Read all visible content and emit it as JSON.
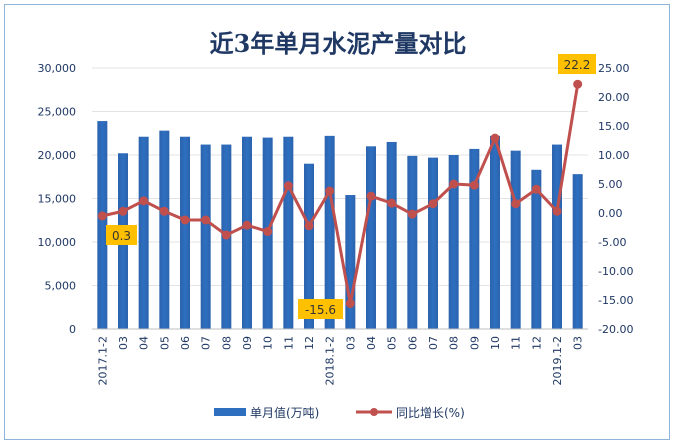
{
  "chart_data": {
    "type": "bar+line",
    "title": "近3年单月水泥产量对比",
    "categories": [
      "2017.1-2",
      "03",
      "04",
      "05",
      "06",
      "07",
      "08",
      "09",
      "10",
      "11",
      "12",
      "2018.1-2",
      "03",
      "04",
      "05",
      "06",
      "07",
      "08",
      "09",
      "10",
      "11",
      "12",
      "2019.1-2",
      "03"
    ],
    "series": [
      {
        "name": "单月值(万吨)",
        "type": "bar",
        "axis": "left",
        "color": "#2e6fc0",
        "values": [
          23900,
          20200,
          22100,
          22800,
          22100,
          21200,
          21200,
          22100,
          22000,
          22100,
          19000,
          22200,
          15400,
          21000,
          21500,
          19900,
          19700,
          20000,
          20700,
          22200,
          20500,
          18300,
          21200,
          17800
        ]
      },
      {
        "name": "同比增长(%)",
        "type": "line",
        "axis": "right",
        "color": "#c0504d",
        "values": [
          -0.5,
          0.3,
          2.1,
          0.3,
          -1.2,
          -1.2,
          -3.8,
          -2.1,
          -3.2,
          4.7,
          -2.2,
          3.8,
          -15.6,
          2.9,
          1.7,
          -0.2,
          1.6,
          5.0,
          4.8,
          12.9,
          1.6,
          4.1,
          0.3,
          22.2
        ]
      }
    ],
    "left_axis": {
      "ylim": [
        0,
        30000
      ],
      "ticks": [
        "0",
        "5,000",
        "10,000",
        "15,000",
        "20,000",
        "25,000",
        "30,000"
      ]
    },
    "right_axis": {
      "ylim": [
        -20,
        25
      ],
      "ticks": [
        "-20.00",
        "-15.00",
        "-10.00",
        "-5.00",
        "0.00",
        "5.00",
        "10.00",
        "15.00",
        "20.00",
        "25.00"
      ]
    },
    "data_labels": [
      {
        "index": 1,
        "text": "0.3"
      },
      {
        "index": 12,
        "text": "-15.6"
      },
      {
        "index": 23,
        "text": "22.2"
      }
    ],
    "label_color": "#ffc000",
    "grid": true,
    "legend_position": "bottom"
  }
}
